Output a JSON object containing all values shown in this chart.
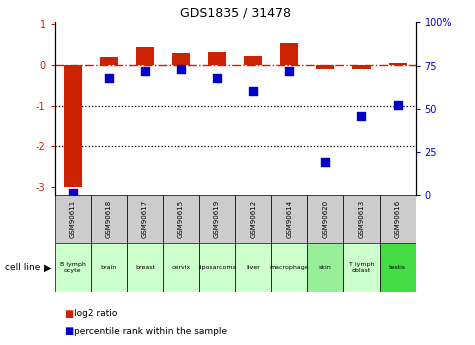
{
  "title": "GDS1835 / 31478",
  "samples": [
    "GSM90611",
    "GSM90618",
    "GSM90617",
    "GSM90615",
    "GSM90619",
    "GSM90612",
    "GSM90614",
    "GSM90620",
    "GSM90613",
    "GSM90616"
  ],
  "cell_lines": [
    "B lymph\nocyte",
    "brain",
    "breast",
    "cervix",
    "liposarcoma\n",
    "liver",
    "macrophage\n",
    "skin",
    "T lymph\noblast",
    "testis"
  ],
  "cell_line_colors": [
    "#ccffcc",
    "#ccffcc",
    "#ccffcc",
    "#ccffcc",
    "#ccffcc",
    "#ccffcc",
    "#ccffcc",
    "#99ee99",
    "#ccffcc",
    "#44dd44"
  ],
  "log2_ratio": [
    -3.0,
    0.2,
    0.45,
    0.3,
    0.33,
    0.22,
    0.55,
    -0.09,
    -0.09,
    0.06
  ],
  "percentile_rank": [
    1,
    68,
    72,
    73,
    68,
    60,
    72,
    19,
    46,
    52
  ],
  "bar_color": "#cc2200",
  "dot_color": "#0000cc",
  "ylim_left": [
    -3.2,
    1.05
  ],
  "ylim_right": [
    0,
    100
  ],
  "right_ticks": [
    0,
    25,
    50,
    75,
    100
  ],
  "right_tick_labels": [
    "0",
    "25",
    "50",
    "75",
    "100%"
  ]
}
